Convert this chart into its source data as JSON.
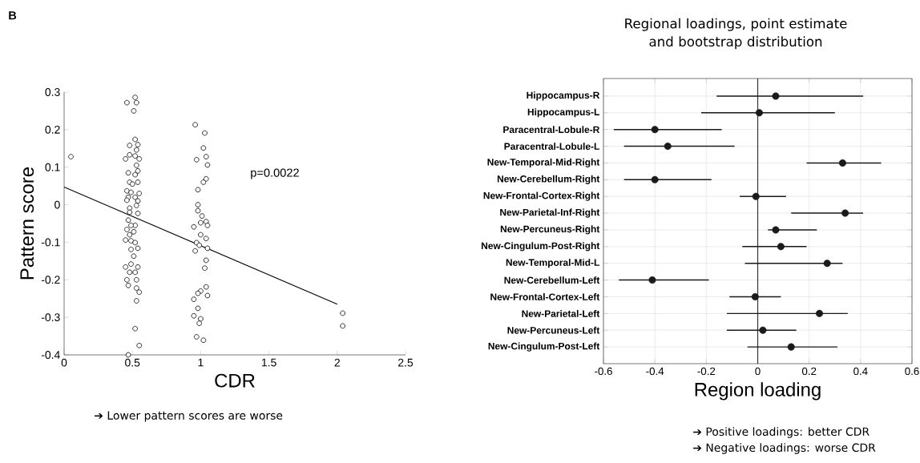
{
  "chart_data": [
    {
      "type": "scatter",
      "xlabel": "CDR",
      "ylabel": "Pattern score",
      "annotations": [
        "B",
        "p=0.0022",
        "➔ Lower pattern scores are worse"
      ],
      "xlim": [
        0,
        2.5
      ],
      "ylim": [
        -0.4,
        0.3
      ],
      "xticks": [
        0,
        0.5,
        1,
        1.5,
        2,
        2.5
      ],
      "yticks": [
        -0.4,
        -0.3,
        -0.2,
        -0.1,
        0,
        0.1,
        0.2,
        0.3
      ],
      "series": [
        {
          "type": "scatter",
          "marker": "circle",
          "color": "#000000",
          "x": [
            0.05,
            0.46,
            0.52,
            0.53,
            0.51,
            0.52,
            0.48,
            0.54,
            0.53,
            0.48,
            0.52,
            0.45,
            0.55,
            0.53,
            0.54,
            0.47,
            0.52,
            0.48,
            0.54,
            0.5,
            0.46,
            0.49,
            0.55,
            0.47,
            0.52,
            0.54,
            0.46,
            0.48,
            0.53,
            0.48,
            0.54,
            0.47,
            0.52,
            0.49,
            0.46,
            0.51,
            0.48,
            0.45,
            0.49,
            0.52,
            0.54,
            0.49,
            0.51,
            0.45,
            0.49,
            0.54,
            0.48,
            0.52,
            0.46,
            0.53,
            0.47,
            0.53,
            0.55,
            0.53,
            0.52,
            0.55,
            0.47,
            0.96,
            1.03,
            1.02,
            0.97,
            1.04,
            1.05,
            1.04,
            1.02,
            0.98,
            0.98,
            0.98,
            1.01,
            1.04,
            0.95,
            1.0,
            1.05,
            1.0,
            1.04,
            0.97,
            0.99,
            1.05,
            0.96,
            1.04,
            1.03,
            1.04,
            1.0,
            1.05,
            0.98,
            0.95,
            0.98,
            0.95,
            1.0,
            0.99,
            0.97,
            1.02,
            2.04,
            2.04
          ],
          "values": [
            0.128,
            0.272,
            0.286,
            0.272,
            0.25,
            0.174,
            0.158,
            0.16,
            0.146,
            0.133,
            0.13,
            0.122,
            0.122,
            0.105,
            0.09,
            0.085,
            0.08,
            0.06,
            0.06,
            0.055,
            0.037,
            0.033,
            0.03,
            0.02,
            0.02,
            0.01,
            0.012,
            -0.009,
            -0.002,
            -0.02,
            -0.023,
            -0.041,
            -0.055,
            -0.055,
            -0.066,
            -0.072,
            -0.08,
            -0.094,
            -0.096,
            -0.101,
            -0.116,
            -0.119,
            -0.137,
            -0.166,
            -0.158,
            -0.166,
            -0.18,
            -0.18,
            -0.2,
            -0.2,
            -0.215,
            -0.222,
            -0.233,
            -0.256,
            -0.33,
            -0.375,
            -0.4,
            0.213,
            0.191,
            0.151,
            0.12,
            0.128,
            0.106,
            0.069,
            0.06,
            0.04,
            0,
            -0.016,
            -0.03,
            -0.045,
            -0.059,
            -0.048,
            -0.055,
            -0.08,
            -0.09,
            -0.101,
            -0.108,
            -0.116,
            -0.123,
            -0.148,
            -0.169,
            -0.219,
            -0.23,
            -0.242,
            -0.236,
            -0.252,
            -0.276,
            -0.296,
            -0.304,
            -0.316,
            -0.352,
            -0.361,
            -0.289,
            -0.323
          ]
        },
        {
          "type": "line",
          "marker": "none",
          "color": "#000000",
          "x": [
            0,
            2
          ],
          "values": [
            0.047,
            -0.265
          ]
        }
      ]
    },
    {
      "type": "scatter",
      "orientation": "horizontal",
      "title": "Regional loadings, point estimate and bootstrap distribution",
      "xlabel": "Region loading",
      "annotations": [
        "➔ Positive loadings: better CDR",
        "➔ Negative loadings: worse CDR"
      ],
      "categories": [
        "Hippocampus-R",
        "Hippocampus-L",
        "Paracentral-Lobule-R",
        "Paracentral-Lobule-L",
        "New-Temporal-Mid-Right",
        "New-Cerebellum-Right",
        "New-Frontal-Cortex-Right",
        "New-Parietal-Inf-Right",
        "New-Percuneus-Right",
        "New-Cingulum-Post-Right",
        "New-Temporal-Mid-L",
        "New-Cerebellum-Left",
        "New-Frontal-Cortex-Left",
        "New-Parietal-Left",
        "New-Percuneus-Left",
        "New-Cingulum-Post-Left"
      ],
      "values": [
        0.07,
        0.006,
        -0.4,
        -0.35,
        0.33,
        -0.4,
        -0.007,
        0.34,
        0.07,
        0.09,
        0.27,
        -0.41,
        -0.01,
        0.24,
        0.02,
        0.13
      ],
      "errors": [
        [
          -0.16,
          0.41
        ],
        [
          -0.22,
          0.3
        ],
        [
          -0.56,
          -0.14
        ],
        [
          -0.52,
          -0.09
        ],
        [
          0.19,
          0.48
        ],
        [
          -0.52,
          -0.18
        ],
        [
          -0.07,
          0.11
        ],
        [
          0.13,
          0.41
        ],
        [
          0.04,
          0.23
        ],
        [
          -0.06,
          0.19
        ],
        [
          -0.05,
          0.33
        ],
        [
          -0.54,
          -0.19
        ],
        [
          -0.11,
          0.09
        ],
        [
          -0.12,
          0.35
        ],
        [
          -0.12,
          0.15
        ],
        [
          -0.04,
          0.31
        ]
      ],
      "color": "#1a1a1a",
      "marker": "circle",
      "grid": true,
      "xlim": [
        -0.6,
        0.6
      ],
      "xticks": [
        -0.6,
        -0.4,
        -0.2,
        0,
        0.2,
        0.4,
        0.6
      ],
      "ref_lines": [
        {
          "axis": "x",
          "value": 0,
          "color": "#333333"
        }
      ]
    }
  ]
}
